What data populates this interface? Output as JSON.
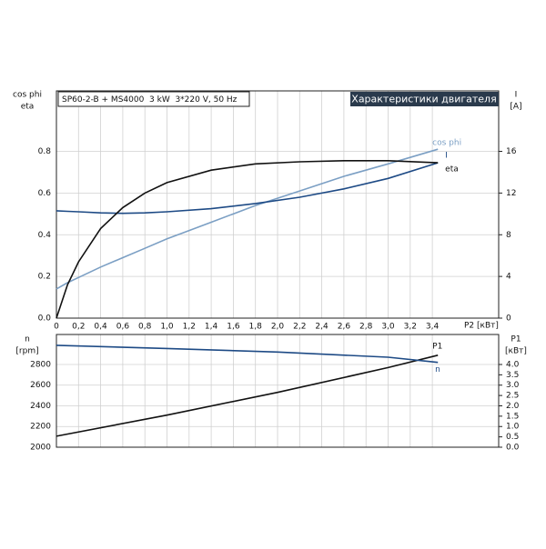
{
  "chart_data": [
    {
      "type": "line",
      "title": "SP60-2-B + MS4000  3 kW  3*220 V, 50 Hz",
      "header": "Характеристики двигателя",
      "xlabel": "P2 [кВт]",
      "ylabel": [
        "cos phi",
        "eta"
      ],
      "y2label": [
        "I",
        "[A]"
      ],
      "x": [
        0,
        0.1,
        0.2,
        0.4,
        0.6,
        0.8,
        1.0,
        1.4,
        1.8,
        2.2,
        2.6,
        3.0,
        3.45
      ],
      "series": [
        {
          "name": "cos phi",
          "color": "#7b9fc4",
          "values": [
            0.14,
            0.17,
            0.195,
            0.245,
            0.29,
            0.335,
            0.38,
            0.46,
            0.54,
            0.61,
            0.68,
            0.74,
            0.81
          ]
        },
        {
          "name": "I",
          "color": "#1d4a85",
          "axis": "y2",
          "values": [
            10.3,
            10.25,
            10.2,
            10.1,
            10.05,
            10.1,
            10.2,
            10.5,
            11.0,
            11.6,
            12.4,
            13.4,
            14.9
          ]
        },
        {
          "name": "eta",
          "color": "#111111",
          "values": [
            0,
            0.16,
            0.27,
            0.43,
            0.53,
            0.6,
            0.65,
            0.71,
            0.74,
            0.75,
            0.755,
            0.755,
            0.745
          ]
        }
      ],
      "xlim": [
        0,
        4.0
      ],
      "xticks": [
        0,
        {
          "value": 0.2,
          "label": "0,2"
        },
        {
          "value": 0.4,
          "label": "0,4"
        },
        {
          "value": 0.6,
          "label": "0,6"
        },
        {
          "value": 0.8,
          "label": "0,8"
        },
        {
          "value": 1.0,
          "label": "1,0"
        },
        {
          "value": 1.2,
          "label": "1,2"
        },
        {
          "value": 1.4,
          "label": "1,4"
        },
        {
          "value": 1.6,
          "label": "1,6"
        },
        {
          "value": 1.8,
          "label": "1,8"
        },
        {
          "value": 2.0,
          "label": "2,0"
        },
        {
          "value": 2.2,
          "label": "2,2"
        },
        {
          "value": 2.4,
          "label": "2,4"
        },
        {
          "value": 2.6,
          "label": "2,6"
        },
        {
          "value": 2.8,
          "label": "2,8"
        },
        {
          "value": 3.0,
          "label": "3,0"
        },
        {
          "value": 3.2,
          "label": "3,2"
        },
        {
          "value": 3.4,
          "label": "3,4"
        }
      ],
      "ylim": [
        0,
        1.09
      ],
      "yticks": [
        {
          "value": 0,
          "label": "0.0"
        },
        {
          "value": 0.2,
          "label": "0.2"
        },
        {
          "value": 0.4,
          "label": "0.4"
        },
        {
          "value": 0.6,
          "label": "0.6"
        },
        {
          "value": 0.8,
          "label": "0.8"
        }
      ],
      "y2lim": [
        0,
        21.8
      ],
      "y2ticks": [
        0,
        4,
        8,
        12,
        16
      ],
      "grid": true
    },
    {
      "type": "line",
      "ylabel": [
        "n",
        "[rpm]"
      ],
      "y2label": [
        "P1",
        "[кВт]"
      ],
      "x": [
        0,
        1,
        2,
        3,
        3.45
      ],
      "series": [
        {
          "name": "P1",
          "color": "#111111",
          "axis": "y2",
          "values": [
            0.53,
            1.55,
            2.65,
            3.85,
            4.45
          ]
        },
        {
          "name": "n",
          "color": "#1d4a85",
          "values": [
            2985,
            2955,
            2920,
            2870,
            2820
          ]
        }
      ],
      "xlim": [
        0,
        4.0
      ],
      "ylim": [
        2000,
        3090
      ],
      "yticks": [
        2000,
        2200,
        2400,
        2600,
        2800
      ],
      "y2lim": [
        0,
        5.45
      ],
      "y2ticks": [
        {
          "value": 0,
          "label": "0.0"
        },
        {
          "value": 0.5,
          "label": "0.5"
        },
        {
          "value": 1,
          "label": "1.0"
        },
        {
          "value": 1.5,
          "label": "1.5"
        },
        {
          "value": 2,
          "label": "2.0"
        },
        {
          "value": 2.5,
          "label": "2.5"
        },
        {
          "value": 3,
          "label": "3.0"
        },
        {
          "value": 3.5,
          "label": "3.5"
        },
        {
          "value": 4,
          "label": "4.0"
        }
      ],
      "grid": true
    }
  ]
}
